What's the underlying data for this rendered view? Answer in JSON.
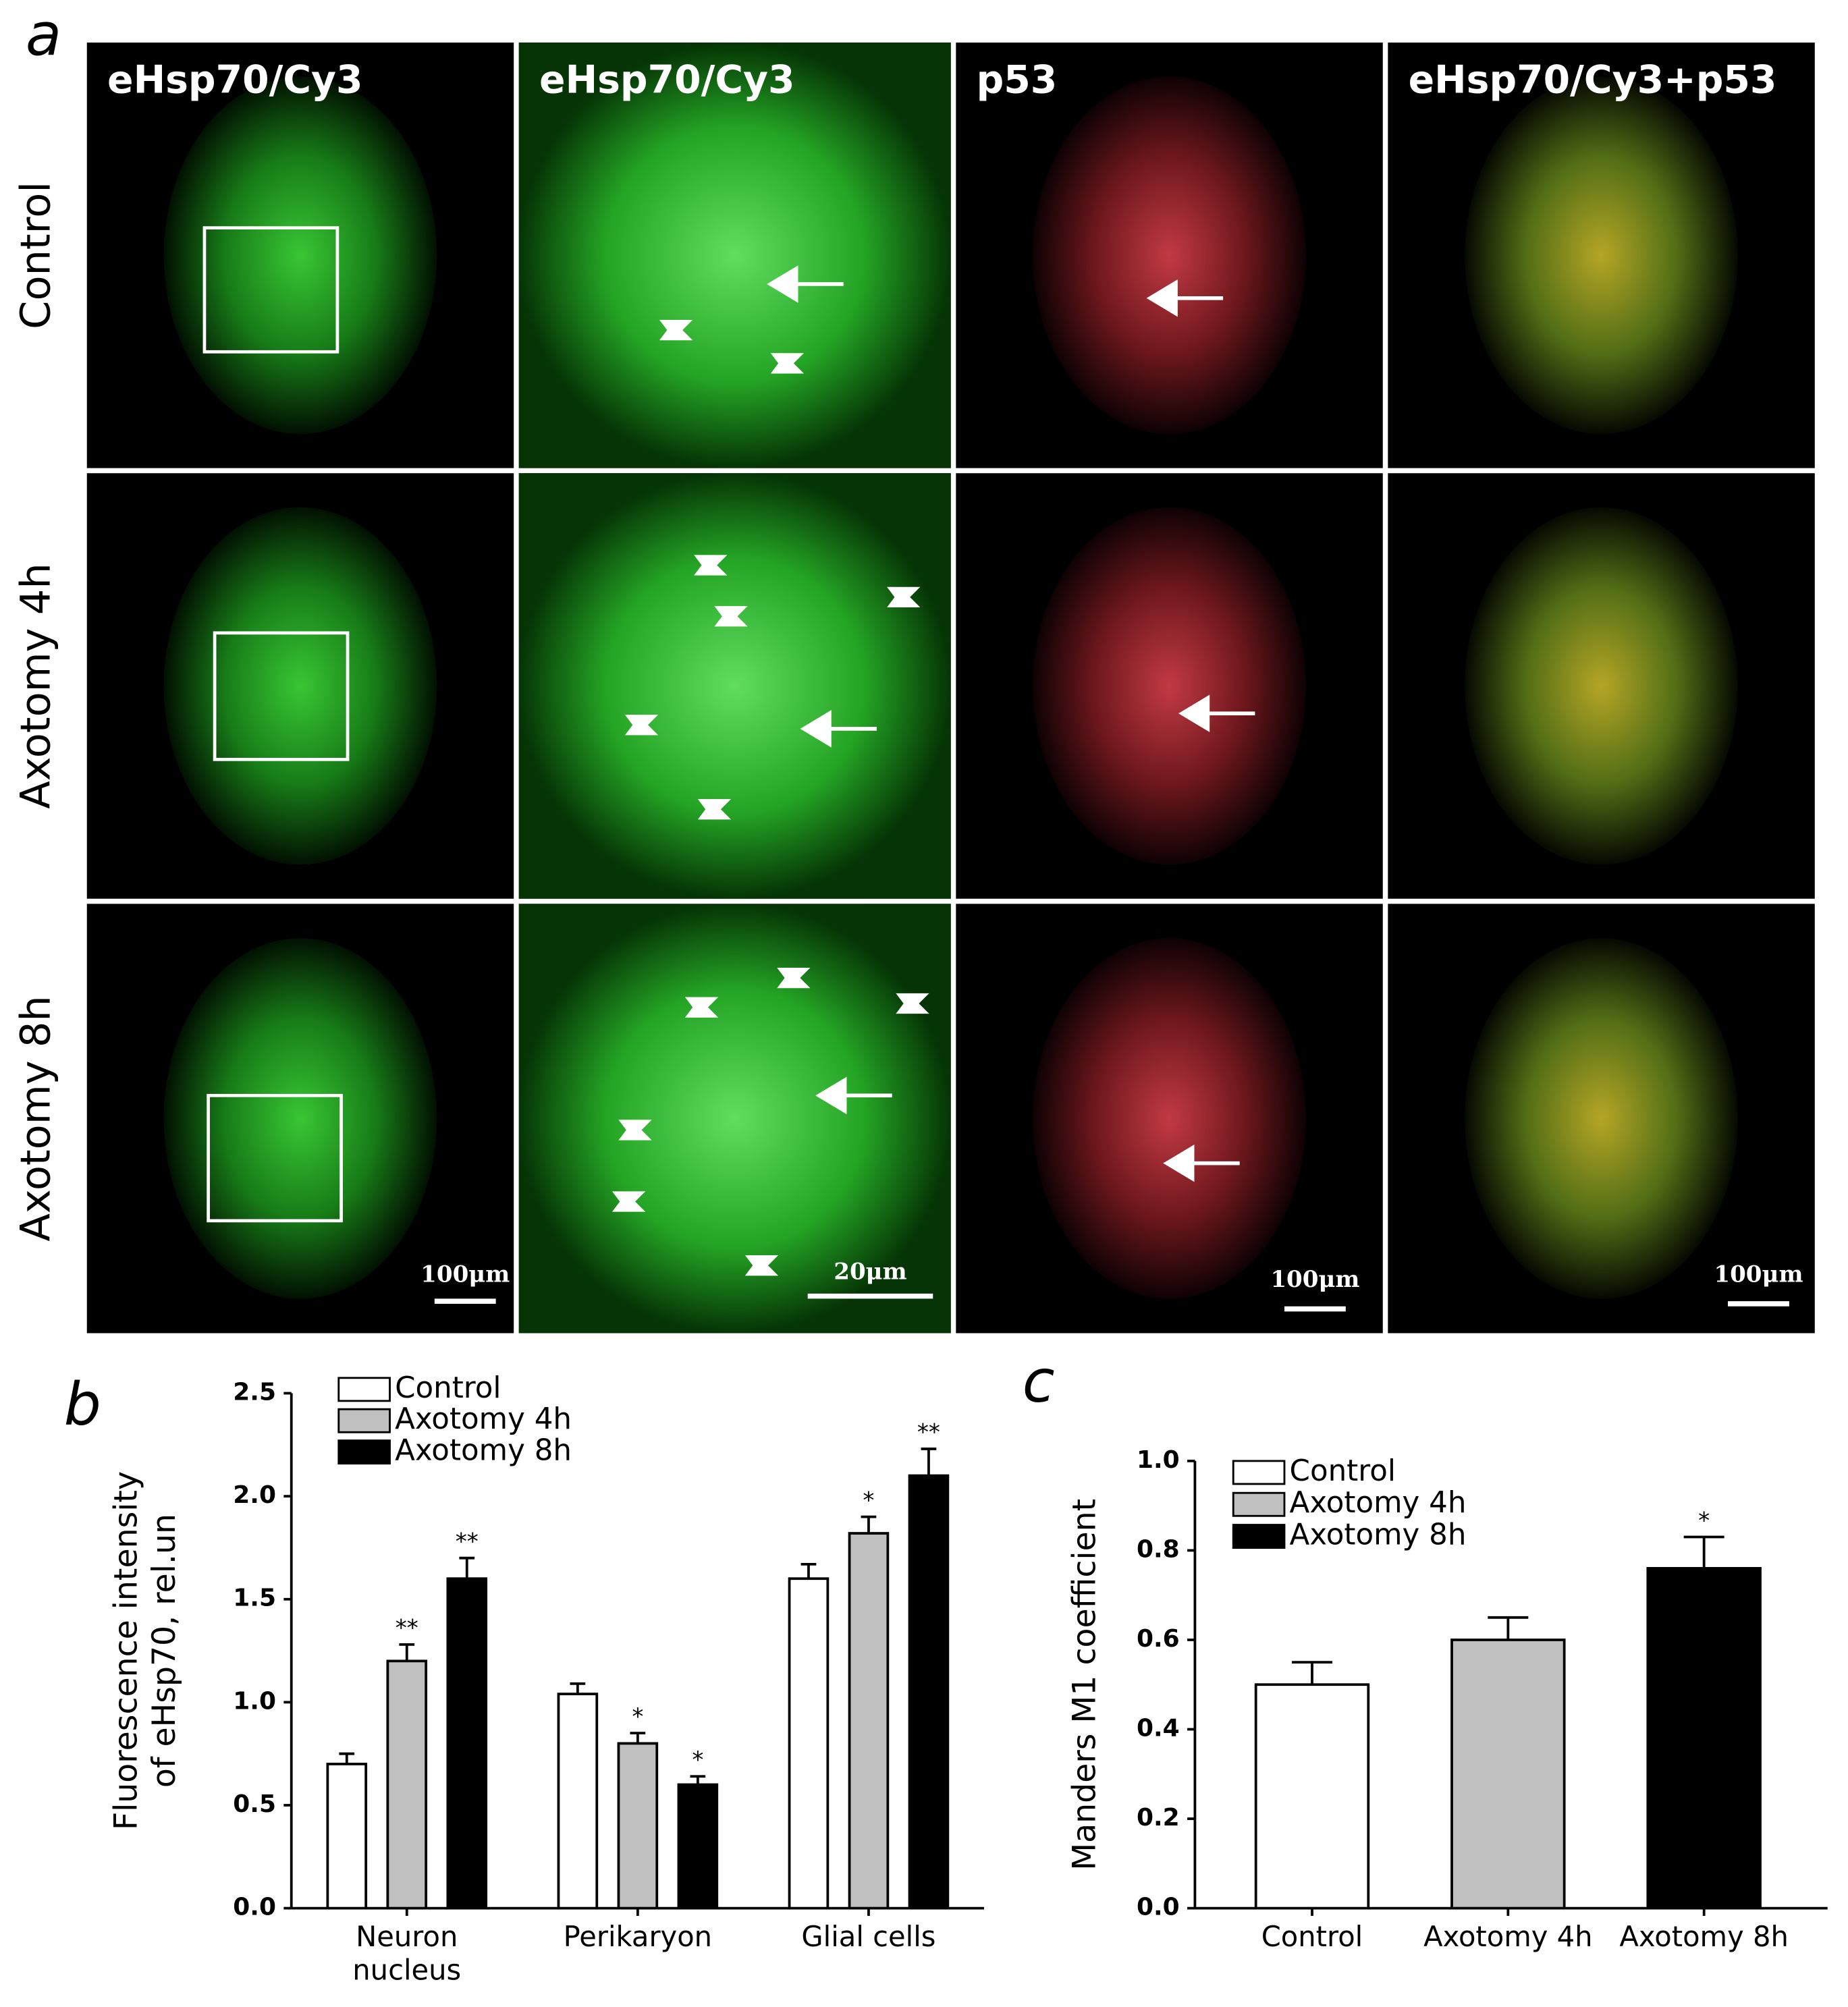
{
  "panel_a": {
    "letter": "a",
    "columns": [
      "eHsp70/Cy3",
      "eHsp70/Cy3",
      "p53",
      "eHsp70/Cy3+p53"
    ],
    "rows": [
      "Control",
      "Axotomy 4h",
      "Axotomy 8h"
    ],
    "scale_bars": [
      "100μm",
      "20μm",
      "100μm",
      "100μm"
    ]
  },
  "chart_data": [
    {
      "type": "bar",
      "letter": "b",
      "y_label": "Fluorescence intensity\nof eHsp70, rel.un",
      "categories": [
        "Neuron\nnucleus",
        "Perikaryon",
        "Glial cells"
      ],
      "series": [
        {
          "name": "Control",
          "color": "#ffffff",
          "values": [
            0.7,
            1.04,
            1.6
          ],
          "errors": [
            0.05,
            0.05,
            0.07
          ]
        },
        {
          "name": "Axotomy 4h",
          "color": "#c0c0c0",
          "values": [
            1.2,
            0.8,
            1.82
          ],
          "errors": [
            0.08,
            0.05,
            0.08
          ],
          "significance": [
            "**",
            "*",
            "*"
          ]
        },
        {
          "name": "Axotomy 8h",
          "color": "#000000",
          "values": [
            1.6,
            0.6,
            2.1
          ],
          "errors": [
            0.1,
            0.04,
            0.13
          ],
          "significance": [
            "**",
            "*",
            "**"
          ]
        }
      ],
      "ylim": [
        0,
        2.5
      ],
      "yticks": [
        {
          "value": 0,
          "label": "0.0"
        },
        {
          "value": 0.5,
          "label": "0.5"
        },
        {
          "value": 1,
          "label": "1.0"
        },
        {
          "value": 1.5,
          "label": "1.5"
        },
        {
          "value": 2,
          "label": "2.0"
        },
        {
          "value": 2.5,
          "label": "2.5"
        }
      ],
      "legend": "top-left"
    },
    {
      "type": "bar",
      "letter": "c",
      "y_label": "Manders M1 coefficient",
      "categories": [
        "Control",
        "Axotomy 4h",
        "Axotomy 8h"
      ],
      "values": [
        0.5,
        0.6,
        0.76
      ],
      "errors": [
        0.05,
        0.05,
        0.07
      ],
      "significance": [
        null,
        null,
        "*"
      ],
      "colors": [
        "#ffffff",
        "#c0c0c0",
        "#000000"
      ],
      "ylim": [
        0,
        1
      ],
      "yticks": [
        {
          "value": 0,
          "label": "0.0"
        },
        {
          "value": 0.2,
          "label": "0.2"
        },
        {
          "value": 0.4,
          "label": "0.4"
        },
        {
          "value": 0.6,
          "label": "0.6"
        },
        {
          "value": 0.8,
          "label": "0.8"
        },
        {
          "value": 1,
          "label": "1.0"
        }
      ],
      "legend": "top-left"
    }
  ]
}
